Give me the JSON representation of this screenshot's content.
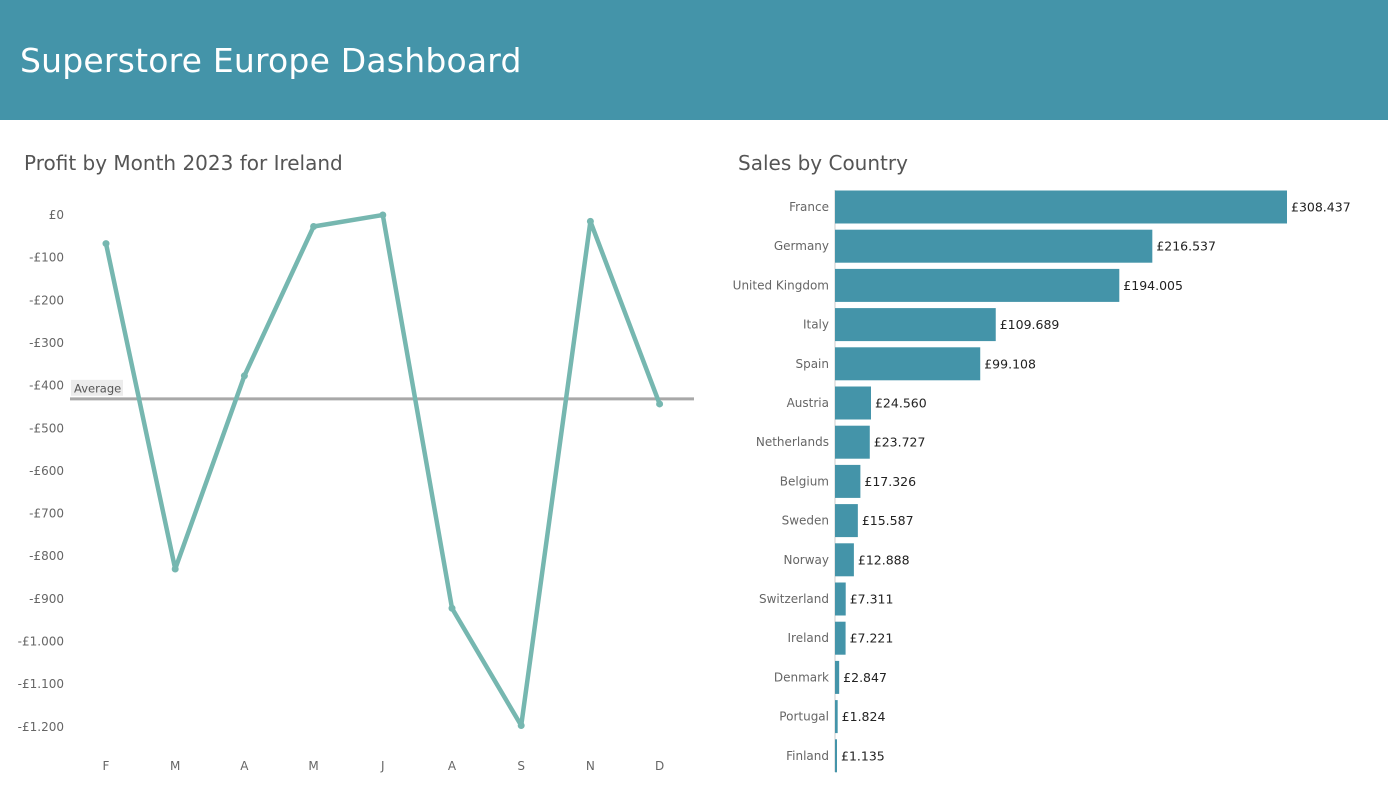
{
  "header": {
    "title": "Superstore Europe Dashboard"
  },
  "colors": {
    "header_bg": "#4494a9",
    "line": "#76b7b0",
    "bar": "#4494a9",
    "average_line": "#a8a8a8"
  },
  "chart_data": [
    {
      "type": "line",
      "title": "Profit by Month 2023 for Ireland",
      "x": [
        "F",
        "M",
        "A",
        "M",
        "J",
        "A",
        "S",
        "N",
        "D"
      ],
      "values": [
        -67,
        -830,
        -377,
        -27,
        0,
        -922,
        -1197,
        -15,
        -443
      ],
      "ylim": [
        -1250,
        0
      ],
      "yticks": [
        0,
        -100,
        -200,
        -300,
        -400,
        -500,
        -600,
        -700,
        -800,
        -900,
        -1000,
        -1100,
        -1200
      ],
      "ytick_labels": [
        "£0",
        "-£100",
        "-£200",
        "-£300",
        "-£400",
        "-£500",
        "-£600",
        "-£700",
        "-£800",
        "-£900",
        "-£1.000",
        "-£1.100",
        "-£1.200"
      ],
      "reference_line": {
        "label": "Average",
        "value": -431
      },
      "grid": false
    },
    {
      "type": "bar",
      "orientation": "horizontal",
      "title": "Sales by Country",
      "categories": [
        "France",
        "Germany",
        "United Kingdom",
        "Italy",
        "Spain",
        "Austria",
        "Netherlands",
        "Belgium",
        "Sweden",
        "Norway",
        "Switzerland",
        "Ireland",
        "Denmark",
        "Portugal",
        "Finland"
      ],
      "values": [
        308437,
        216537,
        194005,
        109689,
        99108,
        24560,
        23727,
        17326,
        15587,
        12888,
        7311,
        7221,
        2847,
        1824,
        1135
      ],
      "value_labels": [
        "£308.437",
        "£216.537",
        "£194.005",
        "£109.689",
        "£99.108",
        "£24.560",
        "£23.727",
        "£17.326",
        "£15.587",
        "£12.888",
        "£7.311",
        "£7.221",
        "£2.847",
        "£1.824",
        "£1.135"
      ],
      "grid": false
    }
  ]
}
